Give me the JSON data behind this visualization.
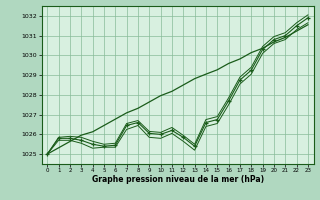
{
  "xlabel": "Graphe pression niveau de la mer (hPa)",
  "background_color": "#b0d8c0",
  "plot_bg_color": "#d8f0e0",
  "line_color": "#1a5c1a",
  "grid_color": "#88bb99",
  "ylim": [
    1024.5,
    1032.5
  ],
  "xlim": [
    -0.5,
    23.5
  ],
  "yticks": [
    1025,
    1026,
    1027,
    1028,
    1029,
    1030,
    1031,
    1032
  ],
  "xticks": [
    0,
    1,
    2,
    3,
    4,
    5,
    6,
    7,
    8,
    9,
    10,
    11,
    12,
    13,
    14,
    15,
    16,
    17,
    18,
    19,
    20,
    21,
    22,
    23
  ],
  "series": {
    "main": [
      1025.0,
      1025.8,
      1025.8,
      1025.7,
      1025.5,
      1025.4,
      1025.45,
      1026.45,
      1026.6,
      1026.05,
      1026.0,
      1026.2,
      1025.85,
      1025.4,
      1026.6,
      1026.75,
      1027.7,
      1028.75,
      1029.25,
      1030.3,
      1030.8,
      1031.0,
      1031.5,
      1031.9
    ],
    "min_line": [
      1025.0,
      1025.7,
      1025.7,
      1025.55,
      1025.3,
      1025.35,
      1025.35,
      1026.25,
      1026.45,
      1025.85,
      1025.8,
      1026.05,
      1025.65,
      1025.2,
      1026.4,
      1026.55,
      1027.5,
      1028.55,
      1029.05,
      1030.1,
      1030.6,
      1030.8,
      1031.3,
      1031.65
    ],
    "max_line": [
      1025.0,
      1025.85,
      1025.9,
      1025.85,
      1025.65,
      1025.5,
      1025.55,
      1026.55,
      1026.7,
      1026.15,
      1026.1,
      1026.35,
      1025.95,
      1025.5,
      1026.75,
      1026.9,
      1027.85,
      1028.9,
      1029.4,
      1030.45,
      1030.95,
      1031.15,
      1031.65,
      1032.05
    ],
    "trend": [
      1025.0,
      1025.32,
      1025.64,
      1025.96,
      1026.13,
      1026.45,
      1026.77,
      1027.09,
      1027.32,
      1027.64,
      1027.96,
      1028.18,
      1028.5,
      1028.82,
      1029.05,
      1029.27,
      1029.59,
      1029.82,
      1030.14,
      1030.36,
      1030.68,
      1030.91,
      1031.23,
      1031.55
    ]
  }
}
